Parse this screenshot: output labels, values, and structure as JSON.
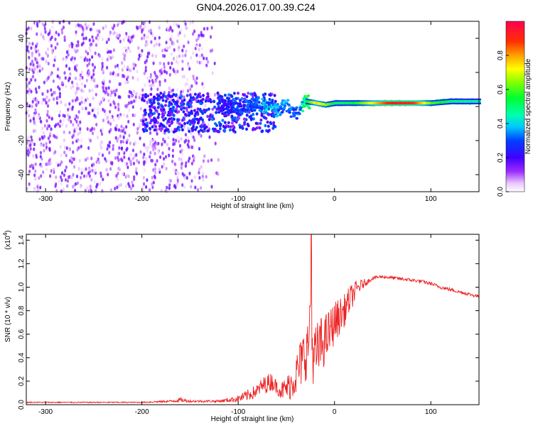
{
  "title": "GN04.2026.017.00.39.C24",
  "chart_data": [
    {
      "type": "heatmap",
      "name": "spectrogram",
      "xlabel": "Height of straight line (km)",
      "ylabel": "Frequency (Hz)",
      "xlim": [
        -320,
        150
      ],
      "ylim": [
        -50,
        50
      ],
      "xticks": [
        -300,
        -200,
        -100,
        0,
        100
      ],
      "yticks": [
        -40,
        -20,
        0,
        20,
        40
      ],
      "xtick_labels": [
        "-300",
        "-200",
        "-100",
        "0",
        "100"
      ],
      "ytick_labels": [
        "-40",
        "-20",
        "0",
        "20",
        "40"
      ],
      "colorbar": {
        "label": "Normalized spectral amplitude",
        "range": [
          0,
          1
        ],
        "ticks": [
          0.0,
          0.2,
          0.4,
          0.6,
          0.8
        ],
        "tick_labels": [
          "0.0",
          "0.2",
          "0.4",
          "0.6",
          "0.8"
        ]
      },
      "regions": [
        {
          "desc": "diffuse noise",
          "x": [
            -320,
            -120
          ],
          "freq": [
            -50,
            50
          ],
          "amplitude": 0.08
        },
        {
          "desc": "noise band",
          "x": [
            -200,
            -60
          ],
          "freq": [
            -15,
            8
          ],
          "amplitude": 0.2
        },
        {
          "desc": "wandering signal",
          "x": [
            -110,
            -25
          ],
          "freq": [
            -8,
            7
          ],
          "amplitude": 0.35
        },
        {
          "desc": "bright track",
          "x": [
            -30,
            150
          ],
          "freq": [
            0,
            4
          ],
          "amplitude": 0.95
        }
      ],
      "track": {
        "x": [
          -120,
          -100,
          -80,
          -70,
          -60,
          -50,
          -40,
          -30,
          -20,
          -10,
          0,
          20,
          40,
          60,
          80,
          100,
          120,
          150
        ],
        "freq": [
          0,
          -1,
          2,
          0,
          -2,
          1,
          -5,
          3,
          2,
          1,
          2,
          2,
          2,
          2,
          2,
          2,
          3,
          3
        ],
        "amp": [
          0.25,
          0.3,
          0.35,
          0.4,
          0.38,
          0.35,
          0.3,
          0.55,
          0.75,
          0.65,
          0.5,
          0.55,
          0.75,
          0.95,
          0.9,
          0.6,
          0.5,
          0.45
        ]
      }
    },
    {
      "type": "line",
      "name": "snr",
      "xlabel": "Height of straight line (km)",
      "ylabel": "SNR (10 * v/v)",
      "scale_label": "(x10",
      "scale_exponent": "4",
      "xlim": [
        -320,
        150
      ],
      "ylim": [
        0,
        1.45
      ],
      "xticks": [
        -300,
        -200,
        -100,
        0,
        100
      ],
      "yticks": [
        0.0,
        0.2,
        0.4,
        0.6,
        0.8,
        1.0,
        1.2,
        1.4
      ],
      "xtick_labels": [
        "-300",
        "-200",
        "-100",
        "0",
        "100"
      ],
      "ytick_labels": [
        "0.0",
        "0.2",
        "0.4",
        "0.6",
        "0.8",
        "1.0",
        "1.2",
        "1.4"
      ],
      "color": "#ee2222",
      "x": [
        -320,
        -250,
        -200,
        -170,
        -160,
        -150,
        -120,
        -110,
        -100,
        -90,
        -80,
        -75,
        -70,
        -65,
        -60,
        -55,
        -50,
        -45,
        -40,
        -35,
        -30,
        -27,
        -25,
        -23,
        -20,
        -15,
        -10,
        -5,
        0,
        5,
        10,
        15,
        20,
        25,
        30,
        35,
        40,
        50,
        60,
        70,
        80,
        90,
        100,
        110,
        120,
        130,
        140,
        150
      ],
      "y": [
        0.02,
        0.02,
        0.02,
        0.03,
        0.04,
        0.03,
        0.03,
        0.04,
        0.05,
        0.08,
        0.12,
        0.16,
        0.18,
        0.2,
        0.15,
        0.12,
        0.14,
        0.18,
        0.25,
        0.35,
        0.45,
        0.5,
        0.9,
        0.45,
        0.4,
        0.5,
        0.55,
        0.62,
        0.7,
        0.75,
        0.8,
        0.88,
        0.95,
        1.0,
        1.03,
        1.05,
        1.08,
        1.09,
        1.08,
        1.07,
        1.06,
        1.05,
        1.03,
        1.0,
        0.98,
        0.96,
        0.94,
        0.92
      ],
      "noise": [
        0.005,
        0.005,
        0.005,
        0.01,
        0.02,
        0.01,
        0.01,
        0.02,
        0.03,
        0.05,
        0.06,
        0.07,
        0.08,
        0.08,
        0.06,
        0.08,
        0.1,
        0.14,
        0.18,
        0.22,
        0.25,
        0.25,
        0.0,
        0.25,
        0.28,
        0.25,
        0.22,
        0.2,
        0.18,
        0.16,
        0.14,
        0.12,
        0.1,
        0.06,
        0.04,
        0.02,
        0.015,
        0.015,
        0.015,
        0.015,
        0.015,
        0.015,
        0.015,
        0.015,
        0.015,
        0.015,
        0.015,
        0.015
      ],
      "peak": {
        "x": -24,
        "y": 1.45
      }
    }
  ]
}
